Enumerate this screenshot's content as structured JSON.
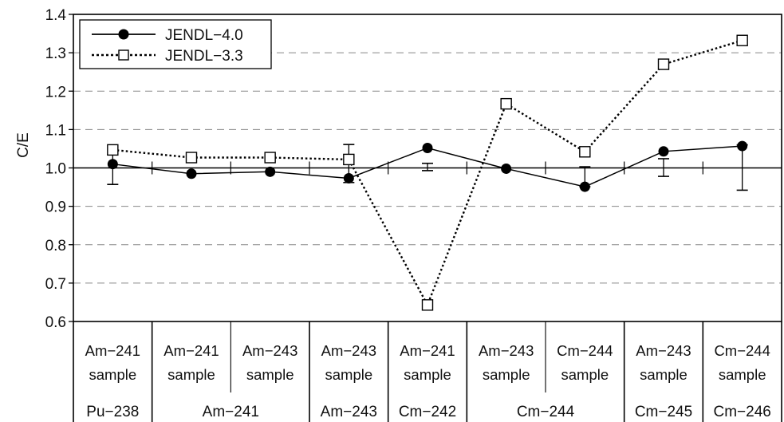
{
  "chart_data": {
    "type": "line",
    "ylabel": "C/E",
    "ylim": [
      0.6,
      1.4
    ],
    "yticks": [
      "0.6",
      "0.7",
      "0.8",
      "0.9",
      "1.0",
      "1.1",
      "1.2",
      "1.3",
      "1.4"
    ],
    "grid": "horizontal dashed",
    "reference_line": 1.0,
    "legend_position": "top-left",
    "categories": [
      {
        "top": "Am−241",
        "bottom": "sample"
      },
      {
        "top": "Am−241",
        "bottom": "sample"
      },
      {
        "top": "Am−243",
        "bottom": "sample"
      },
      {
        "top": "Am−243",
        "bottom": "sample"
      },
      {
        "top": "Am−241",
        "bottom": "sample"
      },
      {
        "top": "Am−243",
        "bottom": "sample"
      },
      {
        "top": "Cm−244",
        "bottom": "sample"
      },
      {
        "top": "Am−243",
        "bottom": "sample"
      },
      {
        "top": "Cm−244",
        "bottom": "sample"
      }
    ],
    "groups": [
      {
        "label": "Pu−238",
        "span": [
          0,
          0
        ]
      },
      {
        "label": "Am−241",
        "span": [
          1,
          2
        ]
      },
      {
        "label": "Am−243",
        "span": [
          3,
          3
        ]
      },
      {
        "label": "Cm−242",
        "span": [
          4,
          4
        ]
      },
      {
        "label": "Cm−244",
        "span": [
          5,
          6
        ]
      },
      {
        "label": "Cm−245",
        "span": [
          7,
          7
        ]
      },
      {
        "label": "Cm−246",
        "span": [
          8,
          8
        ]
      }
    ],
    "series": [
      {
        "name": "JENDL−4.0",
        "style": "solid line, filled circle markers",
        "values": [
          1.01,
          0.985,
          0.99,
          0.973,
          1.052,
          0.998,
          0.951,
          1.043,
          1.057
        ],
        "error_bars": [
          [
            0.957,
            1.035
          ],
          null,
          null,
          [
            0.962,
            1.061
          ],
          [
            0.993,
            1.012
          ],
          null,
          [
            0.951,
            1.003
          ],
          [
            0.978,
            1.024
          ],
          [
            0.942,
            1.06
          ]
        ]
      },
      {
        "name": "JENDL−3.3",
        "style": "dotted line, open square markers",
        "values": [
          1.047,
          1.027,
          1.027,
          1.022,
          0.643,
          1.167,
          1.042,
          1.27,
          1.332
        ]
      }
    ]
  }
}
